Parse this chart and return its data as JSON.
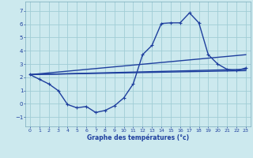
{
  "xlabel": "Graphe des températures (°c)",
  "background_color": "#cce9ee",
  "grid_color": "#a0cdd5",
  "line_color": "#1e3f9e",
  "xlim": [
    -0.5,
    23.5
  ],
  "ylim": [
    -1.7,
    7.7
  ],
  "xticks": [
    0,
    1,
    2,
    3,
    4,
    5,
    6,
    7,
    8,
    9,
    10,
    11,
    12,
    13,
    14,
    15,
    16,
    17,
    18,
    19,
    20,
    21,
    22,
    23
  ],
  "yticks": [
    -1,
    0,
    1,
    2,
    3,
    4,
    5,
    6,
    7
  ],
  "hours": [
    0,
    1,
    2,
    3,
    4,
    5,
    6,
    7,
    8,
    9,
    10,
    11,
    12,
    13,
    14,
    15,
    16,
    17,
    18,
    19,
    20,
    21,
    22,
    23
  ],
  "temps": [
    2.2,
    1.85,
    1.5,
    1.0,
    -0.05,
    -0.3,
    -0.2,
    -0.65,
    -0.5,
    -0.15,
    0.45,
    1.5,
    3.7,
    4.4,
    6.05,
    6.1,
    6.1,
    6.85,
    6.1,
    3.7,
    3.0,
    2.6,
    2.5,
    2.7
  ],
  "trend1_x": [
    0,
    23
  ],
  "trend1_y": [
    2.2,
    3.7
  ],
  "trend2_x": [
    0,
    23
  ],
  "trend2_y": [
    2.2,
    2.6
  ],
  "trend3_x": [
    0,
    23
  ],
  "trend3_y": [
    2.2,
    2.5
  ],
  "marker_size": 3.0,
  "lw": 1.0
}
